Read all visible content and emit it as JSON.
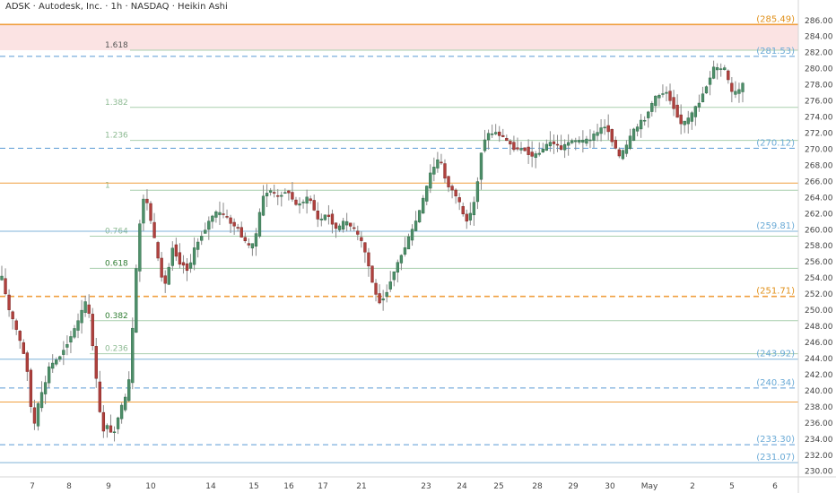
{
  "header": {
    "title": "ADSK · Autodesk, Inc. · 1h · NASDAQ · Heikin Ashi"
  },
  "colors": {
    "up": "#4e8f6a",
    "down": "#b0413e",
    "wick": "#8a8a8a",
    "orange": "#f0a040",
    "blue_dash": "#5a9bd5",
    "blue_solid": "#7fb3d8",
    "fib_green": "#a9cfae",
    "fib_text_green": "#2f7d32",
    "fib_text_grey_green": "#8dba92",
    "zone_fill": "#fbe3e3"
  },
  "chart_data": {
    "type": "candlestick",
    "symbol": "ADSK",
    "name": "Autodesk, Inc.",
    "interval": "1h",
    "exchange": "NASDAQ",
    "candle_style": "Heikin Ashi",
    "y_axis": {
      "min": 229.3,
      "max": 287.2,
      "ticks": [
        "230.00",
        "232.00",
        "234.00",
        "236.00",
        "238.00",
        "240.00",
        "242.00",
        "244.00",
        "246.00",
        "248.00",
        "250.00",
        "252.00",
        "254.00",
        "256.00",
        "258.00",
        "260.00",
        "262.00",
        "264.00",
        "266.00",
        "268.00",
        "270.00",
        "272.00",
        "274.00",
        "276.00",
        "278.00",
        "280.00",
        "282.00",
        "284.00",
        "286.00"
      ]
    },
    "x_axis": {
      "ticks": [
        "7",
        "8",
        "9",
        "10",
        "14",
        "15",
        "16",
        "17",
        "21",
        "23",
        "24",
        "25",
        "28",
        "29",
        "30",
        "May",
        "2",
        "5",
        "6"
      ]
    },
    "levels": [
      {
        "value": 285.49,
        "label": "(285.49)",
        "style": "orange-solid"
      },
      {
        "value": 281.53,
        "label": "(281.53)",
        "style": "blue-dashed"
      },
      {
        "value": 270.12,
        "label": "(270.12)",
        "style": "blue-dashed"
      },
      {
        "value": 265.8,
        "label": "",
        "style": "orange-solid-thin"
      },
      {
        "value": 259.81,
        "label": "(259.81)",
        "style": "blue-solid"
      },
      {
        "value": 251.71,
        "label": "(251.71)",
        "style": "orange-dashed"
      },
      {
        "value": 243.92,
        "label": "(243.92)",
        "style": "blue-solid"
      },
      {
        "value": 240.34,
        "label": "(240.34)",
        "style": "blue-dashed"
      },
      {
        "value": 238.6,
        "label": "",
        "style": "orange-solid-thin"
      },
      {
        "value": 233.3,
        "label": "(233.30)",
        "style": "blue-dashed"
      },
      {
        "value": 231.07,
        "label": "(231.07)",
        "style": "blue-solid"
      }
    ],
    "zone": {
      "from": 282.3,
      "to": 285.49
    },
    "fib_upper": [
      {
        "label": "1.618",
        "value": 282.3
      },
      {
        "label": "1.382",
        "value": 275.2
      },
      {
        "label": "1.236",
        "value": 271.1
      },
      {
        "label": "1",
        "value": 264.9
      }
    ],
    "fib_lower": [
      {
        "label": "0.764",
        "value": 259.2
      },
      {
        "label": "0.618",
        "value": 255.2
      },
      {
        "label": "0.382",
        "value": 248.7
      },
      {
        "label": "0.236",
        "value": 244.6
      }
    ],
    "path_price": [
      [
        0,
        255
      ],
      [
        10,
        250
      ],
      [
        20,
        247
      ],
      [
        30,
        243
      ],
      [
        37,
        235
      ],
      [
        42,
        238
      ],
      [
        48,
        240
      ],
      [
        55,
        243
      ],
      [
        65,
        244
      ],
      [
        75,
        246
      ],
      [
        85,
        248
      ],
      [
        95,
        251
      ],
      [
        100,
        249
      ],
      [
        105,
        244
      ],
      [
        110,
        238
      ],
      [
        115,
        235
      ],
      [
        120,
        236
      ],
      [
        125,
        234
      ],
      [
        132,
        237
      ],
      [
        140,
        239
      ],
      [
        145,
        242
      ],
      [
        150,
        252
      ],
      [
        155,
        260
      ],
      [
        160,
        264
      ],
      [
        165,
        263
      ],
      [
        170,
        260
      ],
      [
        178,
        255
      ],
      [
        185,
        253
      ],
      [
        192,
        258
      ],
      [
        200,
        256
      ],
      [
        210,
        255
      ],
      [
        218,
        258
      ],
      [
        228,
        260
      ],
      [
        238,
        262
      ],
      [
        248,
        262
      ],
      [
        256,
        261
      ],
      [
        266,
        260
      ],
      [
        275,
        258
      ],
      [
        283,
        258
      ],
      [
        293,
        264
      ],
      [
        300,
        265
      ],
      [
        310,
        264
      ],
      [
        320,
        265
      ],
      [
        330,
        263
      ],
      [
        345,
        264
      ],
      [
        355,
        261
      ],
      [
        365,
        262
      ],
      [
        375,
        260
      ],
      [
        385,
        261
      ],
      [
        395,
        260
      ],
      [
        405,
        258
      ],
      [
        412,
        255
      ],
      [
        418,
        252
      ],
      [
        424,
        251
      ],
      [
        430,
        252
      ],
      [
        436,
        254
      ],
      [
        444,
        256
      ],
      [
        452,
        258
      ],
      [
        460,
        260
      ],
      [
        470,
        263
      ],
      [
        480,
        267
      ],
      [
        490,
        269
      ],
      [
        497,
        266
      ],
      [
        503,
        265
      ],
      [
        510,
        264
      ],
      [
        518,
        261
      ],
      [
        525,
        262
      ],
      [
        530,
        264
      ],
      [
        538,
        271
      ],
      [
        546,
        272
      ],
      [
        555,
        272
      ],
      [
        565,
        271
      ],
      [
        575,
        270
      ],
      [
        585,
        270
      ],
      [
        595,
        269
      ],
      [
        605,
        270
      ],
      [
        615,
        271
      ],
      [
        625,
        270
      ],
      [
        635,
        271
      ],
      [
        645,
        271
      ],
      [
        655,
        271
      ],
      [
        665,
        272
      ],
      [
        675,
        273
      ],
      [
        683,
        271
      ],
      [
        690,
        269
      ],
      [
        697,
        270
      ],
      [
        705,
        272
      ],
      [
        712,
        273
      ],
      [
        720,
        274
      ],
      [
        728,
        276
      ],
      [
        737,
        277
      ],
      [
        744,
        277
      ],
      [
        752,
        275
      ],
      [
        760,
        273
      ],
      [
        770,
        274
      ],
      [
        780,
        276
      ],
      [
        788,
        278
      ],
      [
        795,
        280
      ],
      [
        802,
        280
      ],
      [
        808,
        280
      ],
      [
        815,
        277
      ],
      [
        822,
        277
      ],
      [
        828,
        278
      ]
    ],
    "candle_count": 205
  }
}
